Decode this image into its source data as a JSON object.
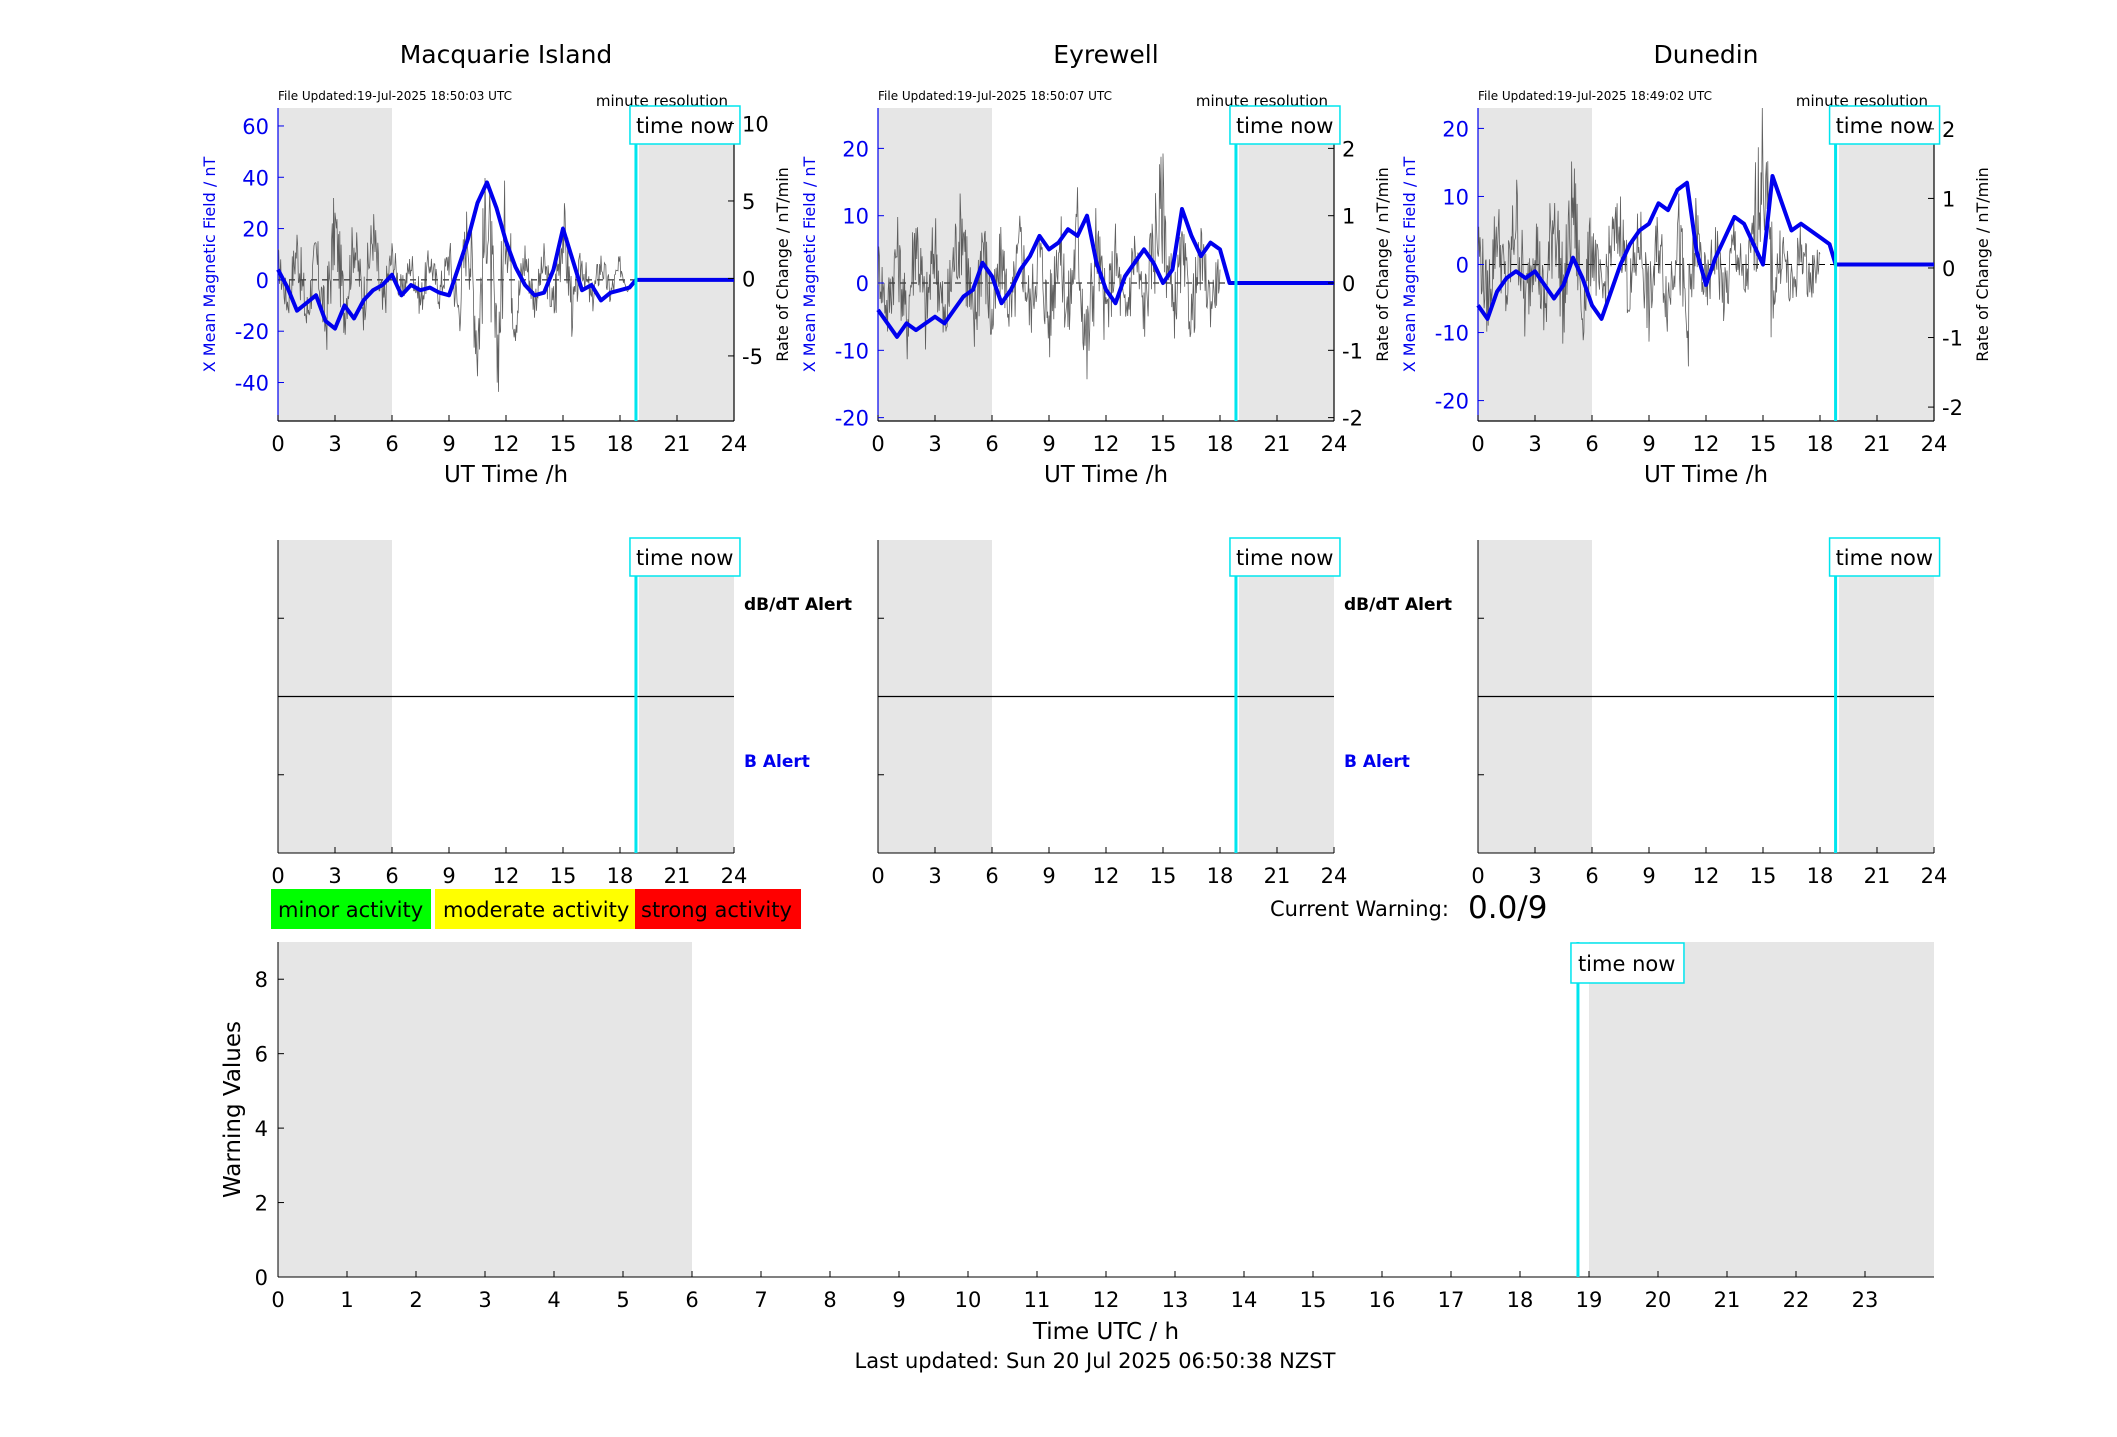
{
  "colors": {
    "field_line": "#0000ee",
    "rate_line": "#444444",
    "time_now": "#00e5ee",
    "shade": "#e6e6e6",
    "minor": "#00ff00",
    "moderate": "#ffff00",
    "strong": "#ff0000",
    "axis_blue": "#0000ee"
  },
  "common": {
    "resolution_label": "minute resolution",
    "time_now_label": "time now",
    "x_label": "UT Time /h",
    "y_left_label": "X Mean Magnetic Field / nT",
    "y_right_label": "Rate of Change / nT/min",
    "alert_db_label": "dB/dT Alert",
    "alert_b_label": "B Alert"
  },
  "legend": {
    "minor": "minor activity",
    "moderate": "moderate activity",
    "strong": "strong activity"
  },
  "warning": {
    "label": "Current Warning:",
    "value": "0.0/9"
  },
  "footer": {
    "last_updated": "Last updated: Sun 20 Jul 2025 06:50:38 NZST"
  },
  "chart_data": [
    {
      "type": "line",
      "title": "Macquarie Island",
      "file_updated": "File Updated:19-Jul-2025 18:50:03 UTC",
      "xlabel": "UT Time /h",
      "xlim": [
        0,
        24
      ],
      "x_ticks": [
        0,
        3,
        6,
        9,
        12,
        15,
        18,
        21,
        24
      ],
      "ylabel_left": "X Mean Magnetic Field / nT",
      "ylim_left": [
        -55,
        67
      ],
      "yticks_left": [
        -40,
        -20,
        0,
        20,
        40,
        60
      ],
      "ylabel_right": "Rate of Change / nT/min",
      "ylim_right": [
        -9.2,
        11
      ],
      "yticks_right": [
        -5,
        0,
        5,
        10
      ],
      "night_shading": [
        [
          0,
          6
        ],
        [
          19,
          24
        ]
      ],
      "time_now": 18.84,
      "series": [
        {
          "name": "",
          "axis": "left",
          "x": [
            0,
            0.5,
            1,
            1.5,
            2,
            2.5,
            3,
            3.5,
            4,
            4.5,
            5,
            5.5,
            6,
            6.5,
            7,
            7.5,
            8,
            8.5,
            9,
            9.5,
            10,
            10.5,
            11,
            11.5,
            12,
            12.5,
            13,
            13.5,
            14,
            14.5,
            15,
            15.5,
            16,
            16.5,
            17,
            17.5,
            18,
            18.5,
            18.84,
            24
          ],
          "y": [
            4,
            -3,
            -12,
            -9,
            -6,
            -16,
            -19,
            -10,
            -15,
            -8,
            -4,
            -2,
            2,
            -6,
            -2,
            -4,
            -3,
            -5,
            -6,
            5,
            16,
            30,
            38,
            28,
            15,
            5,
            -2,
            -6,
            -5,
            4,
            20,
            8,
            -4,
            -2,
            -8,
            -5,
            -4,
            -3,
            0,
            0
          ]
        },
        {
          "name": "",
          "axis": "right",
          "x": [
            0,
            0.5,
            1,
            1.5,
            2,
            2.5,
            3,
            3.5,
            4,
            4.5,
            5,
            5.5,
            6,
            6.5,
            7,
            7.5,
            8,
            8.5,
            9,
            9.5,
            10,
            10.5,
            11,
            11.5,
            12,
            12.5,
            13,
            13.5,
            14,
            14.5,
            15,
            15.5,
            16,
            16.5,
            17,
            17.5,
            18,
            18.5
          ],
          "y": [
            1.0,
            -1.5,
            2.0,
            -2.5,
            1.5,
            -3.0,
            3.5,
            -2.0,
            2.5,
            -1.5,
            3.0,
            -2.0,
            1.5,
            -1.0,
            1.0,
            -1.5,
            1.2,
            -1.0,
            1.5,
            -2.0,
            3.5,
            -4.0,
            5.0,
            -5.5,
            4.0,
            -2.5,
            1.5,
            -1.5,
            1.0,
            -2.0,
            3.5,
            -2.0,
            1.0,
            -1.5,
            1.0,
            -1.0,
            0.8,
            -0.6
          ]
        }
      ]
    },
    {
      "type": "line",
      "title": "Eyrewell",
      "file_updated": "File Updated:19-Jul-2025 18:50:07 UTC",
      "xlabel": "UT Time /h",
      "xlim": [
        0,
        24
      ],
      "x_ticks": [
        0,
        3,
        6,
        9,
        12,
        15,
        18,
        21,
        24
      ],
      "ylabel_left": "X Mean Magnetic Field / nT",
      "ylim_left": [
        -20.5,
        26
      ],
      "yticks_left": [
        -20,
        -10,
        0,
        10,
        20
      ],
      "ylabel_right": "Rate of Change / nT/min",
      "ylim_right": [
        -2.05,
        2.6
      ],
      "yticks_right": [
        -2,
        -1,
        0,
        1,
        2
      ],
      "night_shading": [
        [
          0,
          6
        ],
        [
          19,
          24
        ]
      ],
      "time_now": 18.84,
      "series": [
        {
          "name": "",
          "axis": "left",
          "x": [
            0,
            0.5,
            1,
            1.5,
            2,
            2.5,
            3,
            3.5,
            4,
            4.5,
            5,
            5.5,
            6,
            6.5,
            7,
            7.5,
            8,
            8.5,
            9,
            9.5,
            10,
            10.5,
            11,
            11.5,
            12,
            12.5,
            13,
            13.5,
            14,
            14.5,
            15,
            15.5,
            16,
            16.5,
            17,
            17.5,
            18,
            18.5,
            18.84,
            24
          ],
          "y": [
            -4,
            -6,
            -8,
            -6,
            -7,
            -6,
            -5,
            -6,
            -4,
            -2,
            -1,
            3,
            1,
            -3,
            -1,
            2,
            4,
            7,
            5,
            6,
            8,
            7,
            10,
            3,
            -1,
            -3,
            1,
            3,
            5,
            3,
            0,
            2,
            11,
            7,
            4,
            6,
            5,
            0,
            0,
            0
          ]
        },
        {
          "name": "",
          "axis": "right",
          "x": [
            0,
            0.5,
            1,
            1.5,
            2,
            2.5,
            3,
            3.5,
            4,
            4.5,
            5,
            5.5,
            6,
            6.5,
            7,
            7.5,
            8,
            8.5,
            9,
            9.5,
            10,
            10.5,
            11,
            11.5,
            12,
            12.5,
            13,
            13.5,
            14,
            14.5,
            15,
            15.5,
            16,
            16.5,
            17,
            17.5,
            18
          ],
          "y": [
            0.3,
            -0.4,
            0.5,
            -0.6,
            0.8,
            -0.5,
            0.6,
            -0.7,
            0.4,
            0.9,
            -0.8,
            0.7,
            -0.6,
            0.4,
            -0.5,
            0.6,
            -0.4,
            0.5,
            -0.6,
            0.7,
            -0.5,
            0.8,
            -1.0,
            0.6,
            -0.5,
            0.4,
            -0.6,
            0.5,
            -0.4,
            0.6,
            1.2,
            -0.5,
            0.4,
            -0.5,
            0.4,
            -0.3,
            0.2
          ]
        }
      ]
    },
    {
      "type": "line",
      "title": "Dunedin",
      "file_updated": "File Updated:19-Jul-2025 18:49:02 UTC",
      "xlabel": "UT Time /h",
      "xlim": [
        0,
        24
      ],
      "x_ticks": [
        0,
        3,
        6,
        9,
        12,
        15,
        18,
        21,
        24
      ],
      "ylabel_left": "X Mean Magnetic Field / nT",
      "ylim_left": [
        -23,
        23
      ],
      "yticks_left": [
        -20,
        -10,
        0,
        10,
        20
      ],
      "ylabel_right": "Rate of Change / nT/min",
      "ylim_right": [
        -2.2,
        2.3
      ],
      "yticks_right": [
        -2,
        -1,
        0,
        1,
        2
      ],
      "night_shading": [
        [
          0,
          6
        ],
        [
          19,
          24
        ]
      ],
      "time_now": 18.82,
      "series": [
        {
          "name": "",
          "axis": "left",
          "x": [
            0,
            0.5,
            1,
            1.5,
            2,
            2.5,
            3,
            3.5,
            4,
            4.5,
            5,
            5.5,
            6,
            6.5,
            7,
            7.5,
            8,
            8.5,
            9,
            9.5,
            10,
            10.5,
            11,
            11.5,
            12,
            12.5,
            13,
            13.5,
            14,
            14.5,
            15,
            15.5,
            16,
            16.5,
            17,
            17.5,
            18,
            18.5,
            18.82,
            24
          ],
          "y": [
            -6,
            -8,
            -4,
            -2,
            -1,
            -2,
            -1,
            -3,
            -5,
            -3,
            1,
            -2,
            -6,
            -8,
            -4,
            0,
            3,
            5,
            6,
            9,
            8,
            11,
            12,
            2,
            -3,
            1,
            4,
            7,
            6,
            3,
            0,
            13,
            9,
            5,
            6,
            5,
            4,
            3,
            0,
            0
          ]
        },
        {
          "name": "",
          "axis": "right",
          "x": [
            0,
            0.5,
            1,
            1.5,
            2,
            2.5,
            3,
            3.5,
            4,
            4.5,
            5,
            5.5,
            6,
            6.5,
            7,
            7.5,
            8,
            8.5,
            9,
            9.5,
            10,
            10.5,
            11,
            11.5,
            12,
            12.5,
            13,
            13.5,
            14,
            14.5,
            15,
            15.5,
            16,
            16.5,
            17,
            17.5,
            18
          ],
          "y": [
            0.4,
            -0.5,
            0.6,
            -0.4,
            0.8,
            -0.6,
            0.5,
            -0.7,
            0.9,
            -0.5,
            1.0,
            -0.6,
            0.4,
            -0.5,
            0.3,
            0.6,
            -0.4,
            0.5,
            -0.6,
            0.4,
            -0.5,
            0.6,
            -0.9,
            0.5,
            -0.4,
            0.3,
            -0.5,
            0.4,
            -0.3,
            0.4,
            1.6,
            -0.4,
            0.3,
            -0.4,
            0.3,
            -0.2,
            0.2
          ]
        }
      ]
    },
    {
      "type": "alert_panel",
      "station": "Macquarie Island",
      "xlim": [
        0,
        24
      ],
      "x_ticks": [
        0,
        3,
        6,
        9,
        12,
        15,
        18,
        21,
        24
      ],
      "night_shading": [
        [
          0,
          6
        ],
        [
          19,
          24
        ]
      ],
      "time_now": 18.84,
      "labels": [
        "dB/dT Alert",
        "B Alert"
      ]
    },
    {
      "type": "alert_panel",
      "station": "Eyrewell",
      "xlim": [
        0,
        24
      ],
      "x_ticks": [
        0,
        3,
        6,
        9,
        12,
        15,
        18,
        21,
        24
      ],
      "night_shading": [
        [
          0,
          6
        ],
        [
          19,
          24
        ]
      ],
      "time_now": 18.84,
      "labels": [
        "dB/dT Alert",
        "B Alert"
      ]
    },
    {
      "type": "alert_panel",
      "station": "Dunedin",
      "xlim": [
        0,
        24
      ],
      "x_ticks": [
        0,
        3,
        6,
        9,
        12,
        15,
        18,
        21,
        24
      ],
      "night_shading": [
        [
          0,
          6
        ],
        [
          19,
          24
        ]
      ],
      "time_now": 18.82,
      "labels": []
    },
    {
      "type": "bar",
      "title": "",
      "xlabel": "Time UTC / h",
      "ylabel": "Warning Values",
      "xlim": [
        0,
        24
      ],
      "ylim": [
        0,
        9
      ],
      "x_ticks": [
        0,
        1,
        2,
        3,
        4,
        5,
        6,
        7,
        8,
        9,
        10,
        11,
        12,
        13,
        14,
        15,
        16,
        17,
        18,
        19,
        20,
        21,
        22,
        23
      ],
      "y_ticks": [
        0,
        2,
        4,
        6,
        8
      ],
      "night_shading": [
        [
          0,
          6
        ],
        [
          19,
          24
        ]
      ],
      "time_now": 18.84,
      "values": []
    }
  ]
}
